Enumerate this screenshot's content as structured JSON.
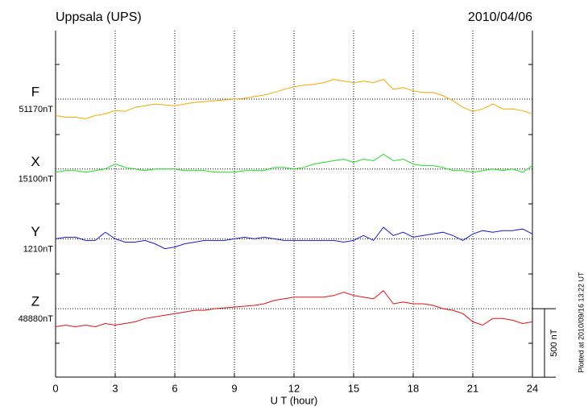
{
  "chart_data": {
    "type": "line",
    "title": "Uppsala (UPS)",
    "date": "2010/04/06",
    "xlabel": "U T (hour)",
    "footnote": "Plotted at 2010/09/16 13:22 UT",
    "xlim": [
      0,
      24
    ],
    "xticks": [
      0,
      3,
      6,
      9,
      12,
      15,
      18,
      21,
      24
    ],
    "scale_bar": {
      "value": 500,
      "label": "500 nT"
    },
    "x": [
      0,
      0.5,
      1,
      1.5,
      2,
      2.5,
      3,
      3.5,
      4,
      4.5,
      5,
      5.5,
      6,
      6.5,
      7,
      7.5,
      8,
      8.5,
      9,
      9.5,
      10,
      10.5,
      11,
      11.5,
      12,
      12.5,
      13,
      13.5,
      14,
      14.5,
      15,
      15.5,
      16,
      16.5,
      17,
      17.5,
      18,
      18.5,
      19,
      19.5,
      20,
      20.5,
      21,
      21.5,
      22,
      22.5,
      23,
      23.5,
      24
    ],
    "series": [
      {
        "name": "F",
        "baseline_label": "51170nT",
        "color": "#f5a800",
        "values": [
          -120,
          -132,
          -132,
          -144,
          -120,
          -108,
          -84,
          -90,
          -60,
          -48,
          -36,
          -42,
          -48,
          -36,
          -24,
          -18,
          -12,
          -6,
          0,
          6,
          18,
          30,
          48,
          72,
          90,
          102,
          108,
          120,
          144,
          132,
          120,
          132,
          120,
          144,
          72,
          84,
          60,
          48,
          48,
          24,
          -12,
          -60,
          -90,
          -72,
          -36,
          -72,
          -72,
          -84,
          -108
        ]
      },
      {
        "name": "X",
        "baseline_label": "15100nT",
        "color": "#22dd22",
        "values": [
          -24,
          -12,
          -12,
          -24,
          -12,
          0,
          36,
          12,
          0,
          -12,
          0,
          0,
          0,
          -12,
          -12,
          -12,
          -24,
          -24,
          -24,
          -12,
          -12,
          -12,
          12,
          12,
          0,
          12,
          36,
          48,
          60,
          72,
          48,
          72,
          60,
          108,
          60,
          72,
          36,
          24,
          24,
          12,
          -12,
          -12,
          -24,
          -12,
          0,
          -12,
          0,
          -24,
          24
        ]
      },
      {
        "name": "Y",
        "baseline_label": "1210nT",
        "color": "#1a1acc",
        "values": [
          0,
          12,
          12,
          -12,
          -12,
          48,
          0,
          -24,
          -24,
          -12,
          -36,
          -72,
          -60,
          -36,
          -24,
          -12,
          -12,
          -12,
          0,
          12,
          0,
          12,
          0,
          -12,
          -12,
          -12,
          -12,
          -12,
          -12,
          -24,
          -12,
          24,
          -12,
          84,
          24,
          48,
          12,
          24,
          36,
          48,
          24,
          -12,
          36,
          60,
          48,
          60,
          60,
          72,
          36
        ]
      },
      {
        "name": "Z",
        "baseline_label": "48880nT",
        "color": "#e01010",
        "values": [
          -132,
          -120,
          -132,
          -120,
          -132,
          -108,
          -120,
          -108,
          -96,
          -72,
          -60,
          -48,
          -36,
          -24,
          -12,
          -12,
          0,
          6,
          12,
          18,
          24,
          36,
          60,
          72,
          84,
          84,
          84,
          84,
          96,
          120,
          96,
          84,
          72,
          132,
          36,
          48,
          36,
          36,
          24,
          0,
          -12,
          -36,
          -96,
          -120,
          -72,
          -72,
          -84,
          -108,
          -96
        ]
      }
    ]
  }
}
